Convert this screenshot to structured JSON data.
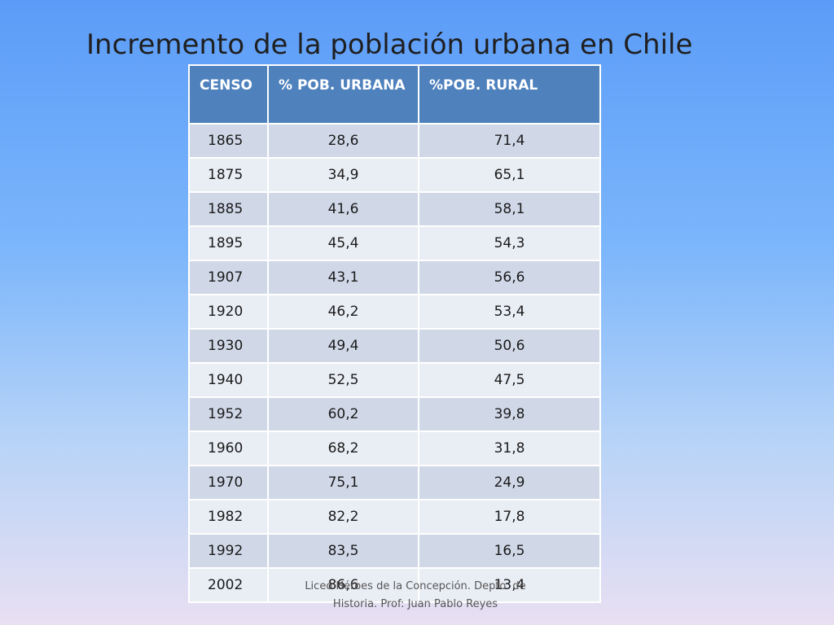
{
  "title": "Incremento de la población urbana en Chile",
  "table": {
    "headers": [
      "CENSO",
      "% POB. URBANA",
      "%POB. RURAL"
    ],
    "rows": [
      [
        "1865",
        "28,6",
        "71,4"
      ],
      [
        "1875",
        "34,9",
        "65,1"
      ],
      [
        "1885",
        "41,6",
        "58,1"
      ],
      [
        "1895",
        "45,4",
        "54,3"
      ],
      [
        "1907",
        "43,1",
        "56,6"
      ],
      [
        "1920",
        "46,2",
        "53,4"
      ],
      [
        "1930",
        "49,4",
        "50,6"
      ],
      [
        "1940",
        "52,5",
        "47,5"
      ],
      [
        "1952",
        "60,2",
        "39,8"
      ],
      [
        "1960",
        "68,2",
        "31,8"
      ],
      [
        "1970",
        "75,1",
        "24,9"
      ],
      [
        "1982",
        "82,2",
        "17,8"
      ],
      [
        "1992",
        "83,5",
        "16,5"
      ],
      [
        "2002",
        "86,6",
        "13,4"
      ]
    ]
  },
  "footer": {
    "line1": "Liceo Héroes de la Concepción. Depto. de",
    "line2": "Historia. Prof: Juan Pablo Reyes"
  }
}
